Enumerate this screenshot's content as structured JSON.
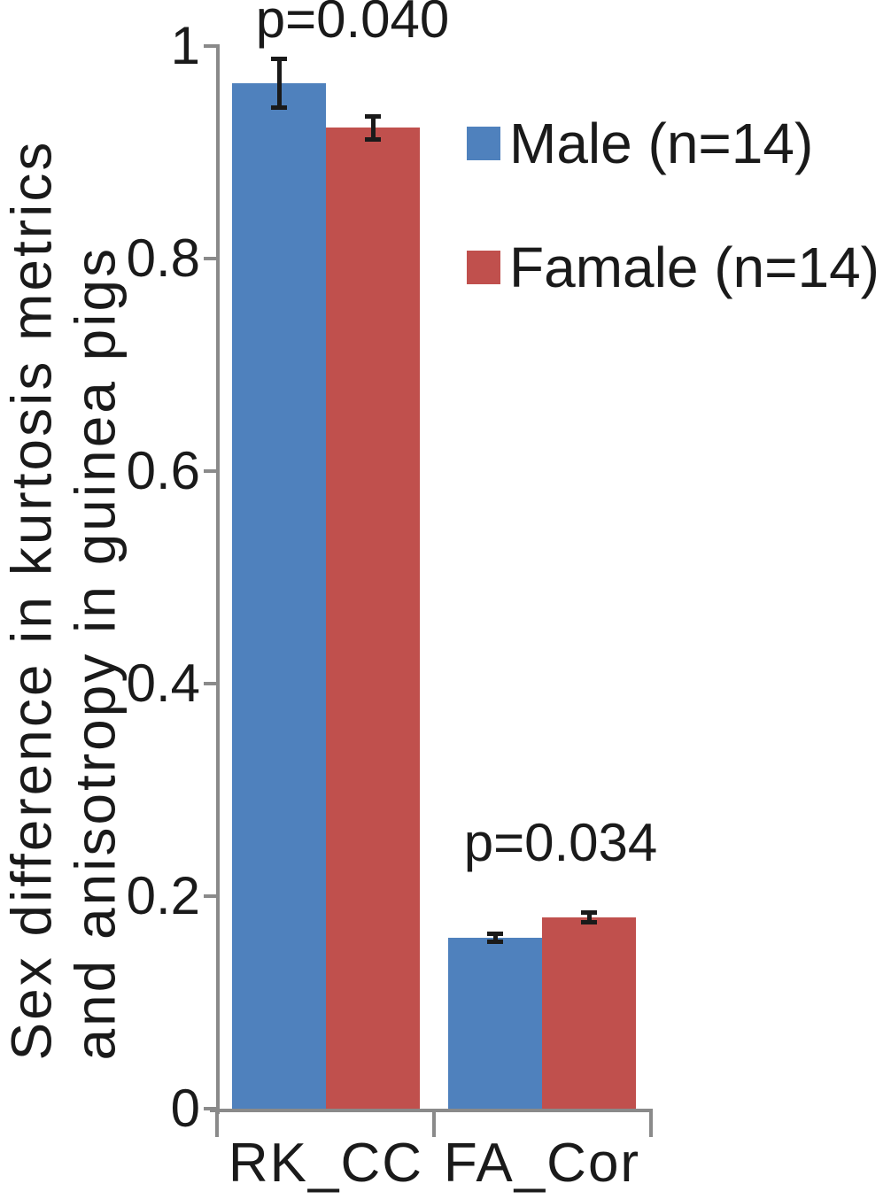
{
  "figure": {
    "background": "#ffffff",
    "text_color": "#1a1a1a"
  },
  "chart_data": {
    "type": "bar",
    "title": "",
    "xlabel": "",
    "ylabel": "Sex difference in kurtosis metrics and anisotropy in guinea pigs",
    "ylabel_lines": [
      "Sex difference in kurtosis metrics",
      "and anisotropy in guinea pigs"
    ],
    "categories": [
      "RK_CC",
      "FA_Cor"
    ],
    "series": [
      {
        "name": "Male (n=14)",
        "color": "#4f81bd",
        "values": [
          0.965,
          0.161
        ],
        "errors": [
          0.023,
          0.004
        ]
      },
      {
        "name": "Famale (n=14)",
        "color": "#c0504d",
        "values": [
          0.923,
          0.18
        ],
        "errors": [
          0.011,
          0.005
        ]
      }
    ],
    "annotations": [
      {
        "category": "RK_CC",
        "label": "p=0.040"
      },
      {
        "category": "FA_Cor",
        "label": "p=0.034"
      }
    ],
    "ylim": [
      0,
      1
    ],
    "yticks": [
      0,
      0.2,
      0.4,
      0.6,
      0.8,
      1
    ],
    "ytick_labels": [
      "0",
      "0.2",
      "0.4",
      "0.6",
      "0.8",
      "1"
    ],
    "grid": false,
    "legend_position": "upper right",
    "axis_color": "#8a8a8a",
    "error_bar_color": "#1a1a1a"
  }
}
